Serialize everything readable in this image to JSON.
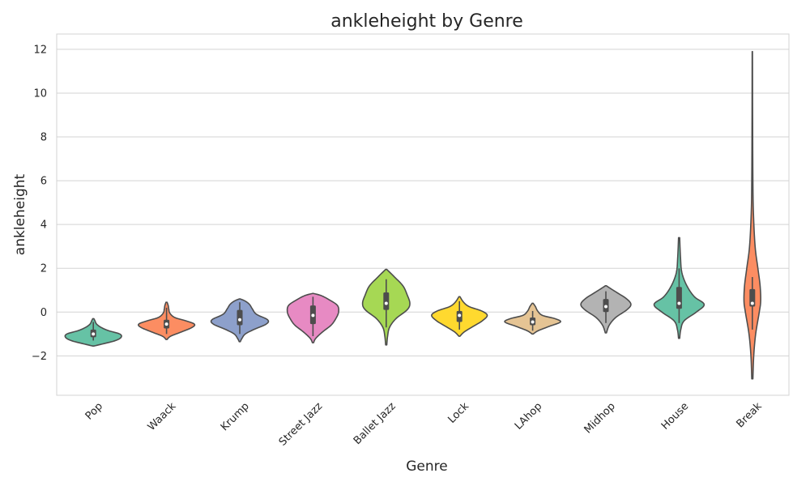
{
  "chart_data": {
    "type": "violin",
    "title": "ankleheight by Genre",
    "xlabel": "Genre",
    "ylabel": "ankleheight",
    "ylim": [
      -3.8,
      12.7
    ],
    "yticks": [
      -2,
      0,
      2,
      4,
      6,
      8,
      10,
      12
    ],
    "ytick_labels": [
      "−2",
      "0",
      "2",
      "4",
      "6",
      "8",
      "10",
      "12"
    ],
    "grid": "horizontal",
    "categories": [
      "Pop",
      "Waack",
      "Krump",
      "Street Jazz",
      "Ballet Jazz",
      "Lock",
      "LAhop",
      "Midhop",
      "House",
      "Break"
    ],
    "colors": [
      "#66c2a5",
      "#fc8d62",
      "#8da0cb",
      "#e78ac3",
      "#a6d854",
      "#ffd92f",
      "#e5c494",
      "#b3b3b3",
      "#66c2a5",
      "#fc8d62"
    ],
    "series": [
      {
        "min": -1.55,
        "max": -0.3,
        "q1": -1.15,
        "median": -1.0,
        "q3": -0.8,
        "whisker_low": -1.3,
        "whisker_high": -0.45,
        "profile": [
          [
            -1.55,
            0.02
          ],
          [
            -1.45,
            0.35
          ],
          [
            -1.3,
            0.8
          ],
          [
            -1.15,
            1.0
          ],
          [
            -1.0,
            0.95
          ],
          [
            -0.85,
            0.55
          ],
          [
            -0.7,
            0.28
          ],
          [
            -0.55,
            0.12
          ],
          [
            -0.4,
            0.06
          ],
          [
            -0.3,
            0.02
          ]
        ]
      },
      {
        "min": -1.25,
        "max": 0.45,
        "q1": -0.75,
        "median": -0.55,
        "q3": -0.35,
        "whisker_low": -1.0,
        "whisker_high": 0.2,
        "profile": [
          [
            -1.25,
            0.02
          ],
          [
            -1.1,
            0.15
          ],
          [
            -0.9,
            0.55
          ],
          [
            -0.7,
            0.92
          ],
          [
            -0.55,
            1.0
          ],
          [
            -0.4,
            0.7
          ],
          [
            -0.25,
            0.3
          ],
          [
            -0.05,
            0.12
          ],
          [
            0.15,
            0.08
          ],
          [
            0.3,
            0.06
          ],
          [
            0.45,
            0.02
          ]
        ]
      },
      {
        "min": -1.35,
        "max": 0.6,
        "q1": -0.6,
        "median": -0.35,
        "q3": 0.1,
        "whisker_low": -1.0,
        "whisker_high": 0.45,
        "profile": [
          [
            -1.35,
            0.02
          ],
          [
            -1.2,
            0.08
          ],
          [
            -1.0,
            0.2
          ],
          [
            -0.8,
            0.5
          ],
          [
            -0.55,
            0.95
          ],
          [
            -0.35,
            1.0
          ],
          [
            -0.1,
            0.6
          ],
          [
            0.15,
            0.45
          ],
          [
            0.35,
            0.35
          ],
          [
            0.5,
            0.2
          ],
          [
            0.6,
            0.02
          ]
        ]
      },
      {
        "min": -1.4,
        "max": 0.85,
        "q1": -0.55,
        "median": -0.15,
        "q3": 0.3,
        "whisker_low": -1.1,
        "whisker_high": 0.7,
        "profile": [
          [
            -1.4,
            0.02
          ],
          [
            -1.2,
            0.1
          ],
          [
            -0.9,
            0.35
          ],
          [
            -0.6,
            0.65
          ],
          [
            -0.3,
            0.82
          ],
          [
            0.0,
            0.92
          ],
          [
            0.3,
            0.88
          ],
          [
            0.55,
            0.6
          ],
          [
            0.75,
            0.3
          ],
          [
            0.85,
            0.02
          ]
        ]
      },
      {
        "min": -1.5,
        "max": 1.95,
        "q1": 0.1,
        "median": 0.4,
        "q3": 0.9,
        "whisker_low": -0.7,
        "whisker_high": 1.5,
        "profile": [
          [
            -1.5,
            0.02
          ],
          [
            -1.1,
            0.05
          ],
          [
            -0.7,
            0.12
          ],
          [
            -0.3,
            0.35
          ],
          [
            0.1,
            0.75
          ],
          [
            0.4,
            0.85
          ],
          [
            0.8,
            0.75
          ],
          [
            1.2,
            0.6
          ],
          [
            1.6,
            0.3
          ],
          [
            1.95,
            0.02
          ]
        ]
      },
      {
        "min": -1.1,
        "max": 0.7,
        "q1": -0.45,
        "median": -0.15,
        "q3": 0.05,
        "whisker_low": -0.8,
        "whisker_high": 0.5,
        "profile": [
          [
            -1.1,
            0.02
          ],
          [
            -0.9,
            0.18
          ],
          [
            -0.65,
            0.5
          ],
          [
            -0.4,
            0.82
          ],
          [
            -0.15,
            1.0
          ],
          [
            0.05,
            0.8
          ],
          [
            0.25,
            0.35
          ],
          [
            0.45,
            0.15
          ],
          [
            0.7,
            0.02
          ]
        ]
      },
      {
        "min": -1.0,
        "max": 0.4,
        "q1": -0.6,
        "median": -0.45,
        "q3": -0.25,
        "whisker_low": -0.85,
        "whisker_high": 0.05,
        "profile": [
          [
            -1.0,
            0.02
          ],
          [
            -0.85,
            0.2
          ],
          [
            -0.65,
            0.6
          ],
          [
            -0.45,
            1.0
          ],
          [
            -0.3,
            0.8
          ],
          [
            -0.15,
            0.35
          ],
          [
            0.05,
            0.18
          ],
          [
            0.25,
            0.1
          ],
          [
            0.4,
            0.02
          ]
        ]
      },
      {
        "min": -0.95,
        "max": 1.2,
        "q1": 0.0,
        "median": 0.25,
        "q3": 0.6,
        "whisker_low": -0.5,
        "whisker_high": 0.95,
        "profile": [
          [
            -0.95,
            0.02
          ],
          [
            -0.6,
            0.12
          ],
          [
            -0.25,
            0.35
          ],
          [
            0.1,
            0.75
          ],
          [
            0.35,
            0.9
          ],
          [
            0.6,
            0.75
          ],
          [
            0.85,
            0.45
          ],
          [
            1.05,
            0.2
          ],
          [
            1.2,
            0.02
          ]
        ]
      },
      {
        "min": -1.2,
        "max": 3.4,
        "q1": 0.15,
        "median": 0.4,
        "q3": 1.15,
        "whisker_low": -0.5,
        "whisker_high": 2.0,
        "profile": [
          [
            -1.2,
            0.02
          ],
          [
            -0.8,
            0.06
          ],
          [
            -0.4,
            0.18
          ],
          [
            0.0,
            0.62
          ],
          [
            0.35,
            0.9
          ],
          [
            0.7,
            0.55
          ],
          [
            1.2,
            0.28
          ],
          [
            1.8,
            0.1
          ],
          [
            2.5,
            0.05
          ],
          [
            3.4,
            0.02
          ]
        ]
      },
      {
        "min": -3.05,
        "max": 11.9,
        "q1": 0.25,
        "median": 0.4,
        "q3": 1.05,
        "whisker_low": -0.8,
        "whisker_high": 1.6,
        "profile": [
          [
            -3.05,
            0.02
          ],
          [
            -2.0,
            0.05
          ],
          [
            -1.0,
            0.12
          ],
          [
            0.0,
            0.25
          ],
          [
            0.5,
            0.3
          ],
          [
            1.2,
            0.28
          ],
          [
            2.0,
            0.2
          ],
          [
            3.0,
            0.1
          ],
          [
            4.5,
            0.04
          ],
          [
            6.0,
            0.02
          ],
          [
            9.0,
            0.01
          ],
          [
            11.9,
            0.005
          ]
        ]
      }
    ]
  }
}
